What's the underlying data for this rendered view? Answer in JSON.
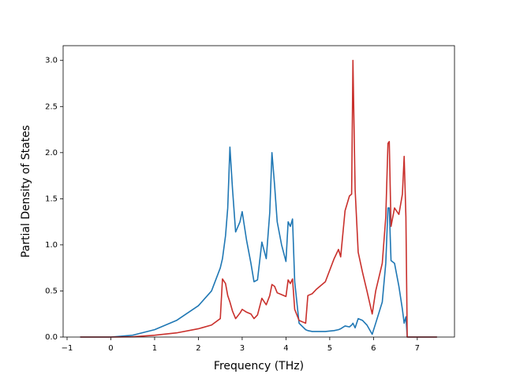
{
  "chart_data": {
    "type": "line",
    "xlabel": "Frequency (THz)",
    "ylabel": "Partial Density of States",
    "x": [
      -0.7,
      0,
      0.5,
      1.0,
      1.5,
      2.0,
      2.3,
      2.5,
      2.55,
      2.62,
      2.67,
      2.72,
      2.78,
      2.85,
      2.95,
      3.0,
      3.1,
      3.2,
      3.27,
      3.35,
      3.45,
      3.55,
      3.63,
      3.68,
      3.74,
      3.8,
      3.9,
      4.0,
      4.05,
      4.1,
      4.15,
      4.2,
      4.3,
      4.45,
      4.5,
      4.6,
      4.7,
      4.9,
      5.1,
      5.2,
      5.25,
      5.35,
      5.45,
      5.5,
      5.53,
      5.58,
      5.65,
      5.75,
      5.85,
      5.97,
      6.05,
      6.2,
      6.28,
      6.33,
      6.36,
      6.4,
      6.48,
      6.58,
      6.66,
      6.7,
      6.74,
      6.77,
      7.45
    ],
    "series": [
      {
        "color": "#1f77b4",
        "values": [
          0,
          0,
          0.02,
          0.08,
          0.18,
          0.34,
          0.5,
          0.75,
          0.85,
          1.1,
          1.4,
          2.06,
          1.6,
          1.14,
          1.25,
          1.36,
          1.05,
          0.8,
          0.6,
          0.62,
          1.03,
          0.85,
          1.35,
          2.0,
          1.65,
          1.25,
          1.0,
          0.82,
          1.25,
          1.2,
          1.28,
          0.6,
          0.15,
          0.08,
          0.07,
          0.06,
          0.06,
          0.06,
          0.07,
          0.08,
          0.09,
          0.12,
          0.11,
          0.13,
          0.15,
          0.1,
          0.2,
          0.18,
          0.13,
          0.03,
          0.15,
          0.38,
          0.8,
          1.4,
          1.4,
          0.83,
          0.8,
          0.55,
          0.3,
          0.15,
          0.22,
          0,
          0
        ]
      },
      {
        "color": "#c9302c",
        "values": [
          0,
          0,
          0.003,
          0.02,
          0.045,
          0.09,
          0.13,
          0.2,
          0.63,
          0.58,
          0.45,
          0.38,
          0.28,
          0.2,
          0.26,
          0.3,
          0.27,
          0.25,
          0.2,
          0.24,
          0.42,
          0.35,
          0.45,
          0.57,
          0.55,
          0.48,
          0.46,
          0.44,
          0.62,
          0.58,
          0.63,
          0.3,
          0.18,
          0.15,
          0.45,
          0.47,
          0.52,
          0.6,
          0.85,
          0.95,
          0.87,
          1.37,
          1.53,
          1.55,
          3.0,
          1.6,
          0.92,
          0.7,
          0.5,
          0.25,
          0.5,
          0.8,
          1.3,
          2.1,
          2.12,
          1.2,
          1.4,
          1.33,
          1.55,
          1.96,
          1.3,
          0,
          0
        ]
      }
    ],
    "xlim": [
      -1.09,
      7.85
    ],
    "ylim": [
      0,
      3.16
    ],
    "xticks": [
      {
        "value": -1,
        "label": "−1"
      },
      0,
      1,
      2,
      3,
      4,
      5,
      6,
      7
    ],
    "yticks": [
      {
        "value": 0,
        "label": "0.0"
      },
      {
        "value": 0.5,
        "label": "0.5"
      },
      {
        "value": 1,
        "label": "1.0"
      },
      {
        "value": 1.5,
        "label": "1.5"
      },
      {
        "value": 2,
        "label": "2.0"
      },
      {
        "value": 2.5,
        "label": "2.5"
      },
      {
        "value": 3,
        "label": "3.0"
      }
    ]
  }
}
